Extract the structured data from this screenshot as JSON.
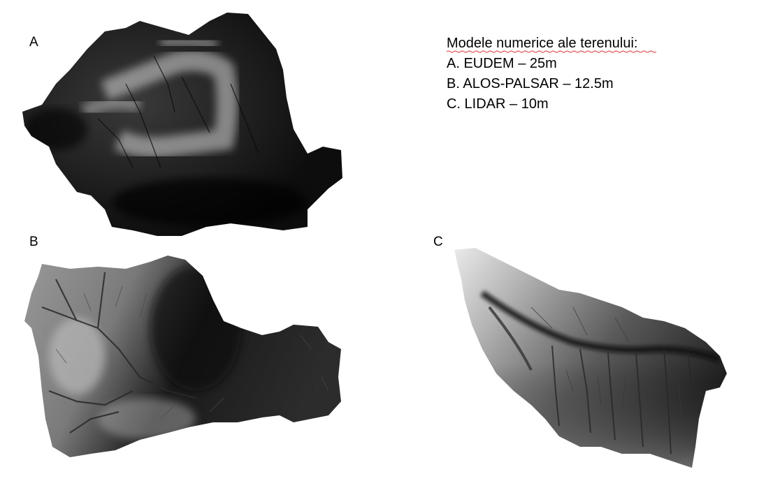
{
  "panels": [
    {
      "label": "A"
    },
    {
      "label": "B"
    },
    {
      "label": "C"
    }
  ],
  "legend": {
    "title": "Modele numerice ale terenului:",
    "items": [
      "A. EUDEM – 25m",
      "B. ALOS-PALSAR – 12.5m",
      "C. LIDAR – 10m"
    ]
  },
  "colors": {
    "background": "#ffffff",
    "text": "#000000",
    "spellcheck_underline": "#e03030"
  },
  "icons": [
    "dem-romania-map",
    "dem-region-map",
    "dem-basin-map"
  ]
}
